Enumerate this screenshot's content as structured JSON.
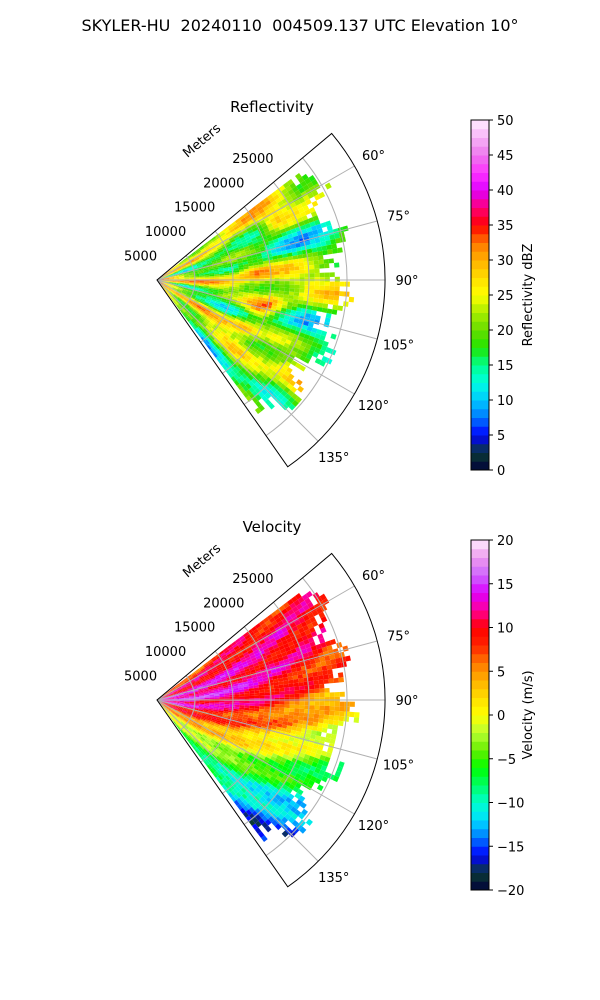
{
  "title": "SKYLER-HU  20240110  004509.137 UTC Elevation 10°",
  "chart_data": [
    {
      "type": "heatmap",
      "subtitle": "Reflectivity",
      "range_label": "Meters",
      "range_ticks": [
        5000,
        10000,
        15000,
        20000,
        25000
      ],
      "range_lim": [
        0,
        30000
      ],
      "azimuth_ticks": [
        "60°",
        "75°",
        "90°",
        "105°",
        "120°",
        "135°"
      ],
      "azimuth_lim": [
        50,
        145
      ],
      "grid": true,
      "colorbar": {
        "label": "Reflectivity dBZ",
        "ticks": [
          "0",
          "5",
          "10",
          "15",
          "20",
          "25",
          "30",
          "35",
          "40",
          "45",
          "50"
        ],
        "lim": [
          0,
          50
        ]
      },
      "colormap": [
        {
          "v": 0,
          "c": "#00003a"
        },
        {
          "v": 2.5,
          "c": "#0a3a35"
        },
        {
          "v": 5,
          "c": "#0000ff"
        },
        {
          "v": 7.5,
          "c": "#0077ff"
        },
        {
          "v": 10,
          "c": "#00c8ff"
        },
        {
          "v": 12.5,
          "c": "#00ffe0"
        },
        {
          "v": 15,
          "c": "#00ff90"
        },
        {
          "v": 17.5,
          "c": "#20e600"
        },
        {
          "v": 20,
          "c": "#66dd00"
        },
        {
          "v": 22.5,
          "c": "#a8ee00"
        },
        {
          "v": 25,
          "c": "#ffff00"
        },
        {
          "v": 27.5,
          "c": "#ffdd00"
        },
        {
          "v": 30,
          "c": "#ffb000"
        },
        {
          "v": 32.5,
          "c": "#ff7700"
        },
        {
          "v": 35,
          "c": "#ff0000"
        },
        {
          "v": 37.5,
          "c": "#ff0077"
        },
        {
          "v": 40,
          "c": "#dd00ff"
        },
        {
          "v": 42.5,
          "c": "#ff33ff"
        },
        {
          "v": 45,
          "c": "#ee77ee"
        },
        {
          "v": 50,
          "c": "#ffeeff"
        }
      ]
    },
    {
      "type": "heatmap",
      "subtitle": "Velocity",
      "range_label": "Meters",
      "range_ticks": [
        5000,
        10000,
        15000,
        20000,
        25000
      ],
      "range_lim": [
        0,
        30000
      ],
      "azimuth_ticks": [
        "60°",
        "75°",
        "90°",
        "105°",
        "120°",
        "135°"
      ],
      "azimuth_lim": [
        50,
        145
      ],
      "grid": true,
      "colorbar": {
        "label": "Velocity (m/s)",
        "ticks": [
          "−20",
          "−15",
          "−10",
          "−5",
          "0",
          "5",
          "10",
          "15",
          "20"
        ],
        "lim": [
          -20,
          20
        ]
      },
      "colormap": [
        {
          "v": -20,
          "c": "#00003a"
        },
        {
          "v": -18,
          "c": "#0a3a35"
        },
        {
          "v": -16,
          "c": "#0000ff"
        },
        {
          "v": -14,
          "c": "#0077ff"
        },
        {
          "v": -12,
          "c": "#00ddff"
        },
        {
          "v": -10,
          "c": "#00ffcc"
        },
        {
          "v": -8,
          "c": "#00ff66"
        },
        {
          "v": -6,
          "c": "#00ff00"
        },
        {
          "v": -4,
          "c": "#66ee00"
        },
        {
          "v": -2,
          "c": "#b8ff33"
        },
        {
          "v": 0,
          "c": "#ffff00"
        },
        {
          "v": 2,
          "c": "#ffdd00"
        },
        {
          "v": 4,
          "c": "#ffb000"
        },
        {
          "v": 6,
          "c": "#ff7700"
        },
        {
          "v": 8,
          "c": "#ff2200"
        },
        {
          "v": 10,
          "c": "#ff0000"
        },
        {
          "v": 12,
          "c": "#ff0099"
        },
        {
          "v": 14,
          "c": "#dd00ff"
        },
        {
          "v": 16,
          "c": "#cc66ff"
        },
        {
          "v": 18,
          "c": "#ee99ee"
        },
        {
          "v": 20,
          "c": "#ffeeff"
        }
      ]
    }
  ]
}
